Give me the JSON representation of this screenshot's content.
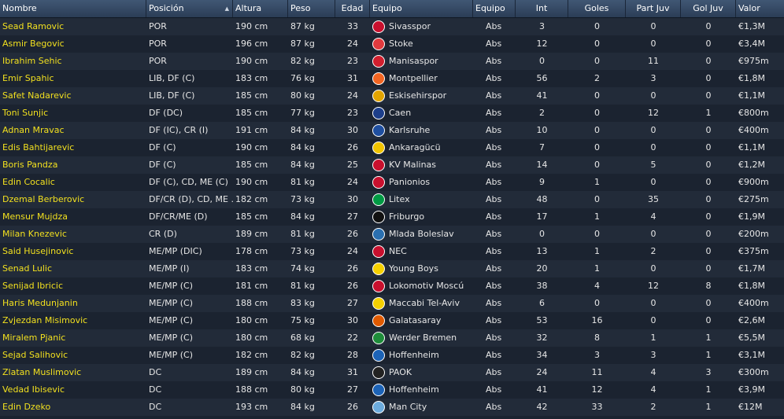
{
  "header": {
    "nombre": "Nombre",
    "posicion": "Posición",
    "altura": "Altura",
    "peso": "Peso",
    "edad": "Edad",
    "equipo": "Equipo",
    "equipo2": "Equipo",
    "int": "Int",
    "goles": "Goles",
    "part_juv": "Part Juv",
    "gol_juv": "Gol Juv",
    "valor": "Valor"
  },
  "colors": {
    "name_text": "#f2e01f",
    "header_bg": "#34496a",
    "row_bg": "#1b2330",
    "row_alt_bg": "#222b39"
  },
  "players": [
    {
      "name": "Sead Ramovic",
      "pos": "POR",
      "height": "190 cm",
      "weight": "87 kg",
      "age": "33",
      "club": "Sivasspor",
      "squad": "Abs",
      "caps": "3",
      "goals": "0",
      "youth_apps": "0",
      "youth_goals": "0",
      "value": "€1,3M",
      "crest": "#c8102e"
    },
    {
      "name": "Asmir Begovic",
      "pos": "POR",
      "height": "196 cm",
      "weight": "87 kg",
      "age": "24",
      "club": "Stoke",
      "squad": "Abs",
      "caps": "12",
      "goals": "0",
      "youth_apps": "0",
      "youth_goals": "0",
      "value": "€3,4M",
      "crest": "#e03a3e"
    },
    {
      "name": "Ibrahim Sehic",
      "pos": "POR",
      "height": "190 cm",
      "weight": "82 kg",
      "age": "23",
      "club": "Manisaspor",
      "squad": "Abs",
      "caps": "0",
      "goals": "0",
      "youth_apps": "11",
      "youth_goals": "0",
      "value": "€975m",
      "crest": "#d11f2e"
    },
    {
      "name": "Emir Spahic",
      "pos": "LIB, DF (C)",
      "height": "183 cm",
      "weight": "76 kg",
      "age": "31",
      "club": "Montpellier",
      "squad": "Abs",
      "caps": "56",
      "goals": "2",
      "youth_apps": "3",
      "youth_goals": "0",
      "value": "€1,8M",
      "crest": "#f26522"
    },
    {
      "name": "Safet Nadarevic",
      "pos": "LIB, DF (C)",
      "height": "185 cm",
      "weight": "80 kg",
      "age": "24",
      "club": "Eskisehirspor",
      "squad": "Abs",
      "caps": "41",
      "goals": "0",
      "youth_apps": "0",
      "youth_goals": "0",
      "value": "€1,1M",
      "crest": "#e2a400"
    },
    {
      "name": "Toni Sunjic",
      "pos": "DF (DC)",
      "height": "185 cm",
      "weight": "77 kg",
      "age": "23",
      "club": "Caen",
      "squad": "Abs",
      "caps": "2",
      "goals": "0",
      "youth_apps": "12",
      "youth_goals": "1",
      "value": "€800m",
      "crest": "#1d3e8a"
    },
    {
      "name": "Adnan Mravac",
      "pos": "DF (IC), CR (I)",
      "height": "191 cm",
      "weight": "84 kg",
      "age": "30",
      "club": "Karlsruhe",
      "squad": "Abs",
      "caps": "10",
      "goals": "0",
      "youth_apps": "0",
      "youth_goals": "0",
      "value": "€400m",
      "crest": "#1f4fa0"
    },
    {
      "name": "Edis Bahtijarevic",
      "pos": "DF (C)",
      "height": "190 cm",
      "weight": "84 kg",
      "age": "26",
      "club": "Ankaragücü",
      "squad": "Abs",
      "caps": "7",
      "goals": "0",
      "youth_apps": "0",
      "youth_goals": "0",
      "value": "€1,1M",
      "crest": "#f1c400"
    },
    {
      "name": "Boris Pandza",
      "pos": "DF (C)",
      "height": "185 cm",
      "weight": "84 kg",
      "age": "25",
      "club": "KV Malinas",
      "squad": "Abs",
      "caps": "14",
      "goals": "0",
      "youth_apps": "5",
      "youth_goals": "0",
      "value": "€1,2M",
      "crest": "#c8102e"
    },
    {
      "name": "Edin Cocalic",
      "pos": "DF (C), CD, ME (C)",
      "height": "190 cm",
      "weight": "81 kg",
      "age": "24",
      "club": "Panionios",
      "squad": "Abs",
      "caps": "9",
      "goals": "1",
      "youth_apps": "0",
      "youth_goals": "0",
      "value": "€900m",
      "crest": "#c8102e"
    },
    {
      "name": "Dzemal Berberovic",
      "pos": "DF/CR (D), CD, ME ..",
      "height": "182 cm",
      "weight": "73 kg",
      "age": "30",
      "club": "Litex",
      "squad": "Abs",
      "caps": "48",
      "goals": "0",
      "youth_apps": "35",
      "youth_goals": "0",
      "value": "€275m",
      "crest": "#009a44"
    },
    {
      "name": "Mensur Mujdza",
      "pos": "DF/CR/ME (D)",
      "height": "185 cm",
      "weight": "84 kg",
      "age": "27",
      "club": "Friburgo",
      "squad": "Abs",
      "caps": "17",
      "goals": "1",
      "youth_apps": "4",
      "youth_goals": "0",
      "value": "€1,9M",
      "crest": "#111111"
    },
    {
      "name": "Milan Knezevic",
      "pos": "CR (D)",
      "height": "189 cm",
      "weight": "81 kg",
      "age": "26",
      "club": "Mlada Boleslav",
      "squad": "Abs",
      "caps": "0",
      "goals": "0",
      "youth_apps": "0",
      "youth_goals": "0",
      "value": "€200m",
      "crest": "#2a6fb0"
    },
    {
      "name": "Said Husejinovic",
      "pos": "ME/MP (DIC)",
      "height": "178 cm",
      "weight": "73 kg",
      "age": "24",
      "club": "NEC",
      "squad": "Abs",
      "caps": "13",
      "goals": "1",
      "youth_apps": "2",
      "youth_goals": "0",
      "value": "€375m",
      "crest": "#c8102e"
    },
    {
      "name": "Senad Lulic",
      "pos": "ME/MP (I)",
      "height": "183 cm",
      "weight": "74 kg",
      "age": "26",
      "club": "Young Boys",
      "squad": "Abs",
      "caps": "20",
      "goals": "1",
      "youth_apps": "0",
      "youth_goals": "0",
      "value": "€1,7M",
      "crest": "#f5d000"
    },
    {
      "name": "Senijad Ibricic",
      "pos": "ME/MP (C)",
      "height": "181 cm",
      "weight": "81 kg",
      "age": "26",
      "club": "Lokomotiv Moscú",
      "squad": "Abs",
      "caps": "38",
      "goals": "4",
      "youth_apps": "12",
      "youth_goals": "8",
      "value": "€1,8M",
      "crest": "#c8102e"
    },
    {
      "name": "Haris Medunjanin",
      "pos": "ME/MP (C)",
      "height": "188 cm",
      "weight": "83 kg",
      "age": "27",
      "club": "Maccabi Tel-Aviv",
      "squad": "Abs",
      "caps": "6",
      "goals": "0",
      "youth_apps": "0",
      "youth_goals": "0",
      "value": "€400m",
      "crest": "#f5d000"
    },
    {
      "name": "Zvjezdan Misimovic",
      "pos": "ME/MP (C)",
      "height": "180 cm",
      "weight": "75 kg",
      "age": "30",
      "club": "Galatasaray",
      "squad": "Abs",
      "caps": "53",
      "goals": "16",
      "youth_apps": "0",
      "youth_goals": "0",
      "value": "€2,6M",
      "crest": "#e05a00"
    },
    {
      "name": "Miralem Pjanic",
      "pos": "ME/MP (C)",
      "height": "180 cm",
      "weight": "68 kg",
      "age": "22",
      "club": "Werder Bremen",
      "squad": "Abs",
      "caps": "32",
      "goals": "8",
      "youth_apps": "1",
      "youth_goals": "1",
      "value": "€5,5M",
      "crest": "#1e8c3a"
    },
    {
      "name": "Sejad Salihovic",
      "pos": "ME/MP (C)",
      "height": "182 cm",
      "weight": "82 kg",
      "age": "28",
      "club": "Hoffenheim",
      "squad": "Abs",
      "caps": "34",
      "goals": "3",
      "youth_apps": "3",
      "youth_goals": "1",
      "value": "€3,1M",
      "crest": "#1c63b7"
    },
    {
      "name": "Zlatan Muslimovic",
      "pos": "DC",
      "height": "189 cm",
      "weight": "84 kg",
      "age": "31",
      "club": "PAOK",
      "squad": "Abs",
      "caps": "24",
      "goals": "11",
      "youth_apps": "4",
      "youth_goals": "3",
      "value": "€300m",
      "crest": "#222222"
    },
    {
      "name": "Vedad Ibisevic",
      "pos": "DC",
      "height": "188 cm",
      "weight": "80 kg",
      "age": "27",
      "club": "Hoffenheim",
      "squad": "Abs",
      "caps": "41",
      "goals": "12",
      "youth_apps": "4",
      "youth_goals": "1",
      "value": "€3,9M",
      "crest": "#1c63b7"
    },
    {
      "name": "Edin Dzeko",
      "pos": "DC",
      "height": "193 cm",
      "weight": "84 kg",
      "age": "26",
      "club": "Man City",
      "squad": "Abs",
      "caps": "42",
      "goals": "33",
      "youth_apps": "2",
      "youth_goals": "1",
      "value": "€12M",
      "crest": "#6cabdd"
    }
  ]
}
